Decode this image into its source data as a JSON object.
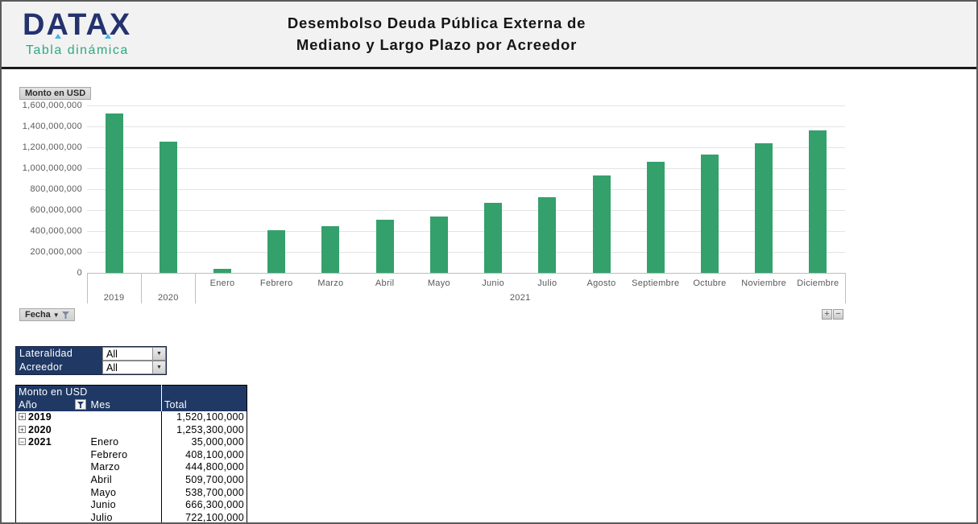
{
  "header": {
    "logo_title": "DATAX",
    "logo_subtitle": "Tabla dinámica",
    "title_line1": "Desembolso Deuda Pública Externa de",
    "title_line2": "Mediano y Largo Plazo por Acreedor"
  },
  "chart": {
    "value_field_button": "Monto en USD",
    "axis_field_button": "Fecha",
    "expand_button_label": "+",
    "collapse_button_label": "−",
    "group_label_2021": "2021",
    "y_tick_labels": [
      "1,600,000,000",
      "1,400,000,000",
      "1,200,000,000",
      "1,000,000,000",
      "800,000,000",
      "600,000,000",
      "400,000,000",
      "200,000,000",
      "0"
    ]
  },
  "chart_data": {
    "type": "bar",
    "title": "Desembolso Deuda Pública Externa de Mediano y Largo Plazo por Acreedor",
    "ylabel": "Monto en USD",
    "ylim": [
      0,
      1600000000
    ],
    "grid": true,
    "bar_color": "#34a06b",
    "categories": [
      "2019",
      "2020",
      "Enero",
      "Febrero",
      "Marzo",
      "Abril",
      "Mayo",
      "Junio",
      "Julio",
      "Agosto",
      "Septiembre",
      "Octubre",
      "Noviembre",
      "Diciembre"
    ],
    "values": [
      1520100000,
      1253300000,
      35000000,
      408100000,
      444800000,
      509700000,
      538700000,
      666300000,
      722100000,
      930000000,
      1060000000,
      1130000000,
      1235000000,
      1365000000
    ],
    "year_slots": [
      "2019",
      "2020"
    ],
    "month_group_label": "2021"
  },
  "filters": [
    {
      "label": "Lateralidad",
      "value": "All"
    },
    {
      "label": "Acreedor",
      "value": "All"
    }
  ],
  "pivot_table": {
    "title": "Monto en USD",
    "columns": [
      "Año",
      "Mes",
      "Total"
    ],
    "rows": [
      {
        "expand": "+",
        "year": "2019",
        "mes": "",
        "total": "1,520,100,000"
      },
      {
        "expand": "+",
        "year": "2020",
        "mes": "",
        "total": "1,253,300,000"
      },
      {
        "expand": "−",
        "year": "2021",
        "mes": "Enero",
        "total": "35,000,000"
      },
      {
        "expand": "",
        "year": "",
        "mes": "Febrero",
        "total": "408,100,000"
      },
      {
        "expand": "",
        "year": "",
        "mes": "Marzo",
        "total": "444,800,000"
      },
      {
        "expand": "",
        "year": "",
        "mes": "Abril",
        "total": "509,700,000"
      },
      {
        "expand": "",
        "year": "",
        "mes": "Mayo",
        "total": "538,700,000"
      },
      {
        "expand": "",
        "year": "",
        "mes": "Junio",
        "total": "666,300,000"
      },
      {
        "expand": "",
        "year": "",
        "mes": "Julio",
        "total": "722,100,000"
      }
    ]
  },
  "colors": {
    "navy": "#1f3864",
    "bar_green": "#34a06b",
    "logo_navy": "#24336e",
    "logo_green": "#2ea884"
  }
}
